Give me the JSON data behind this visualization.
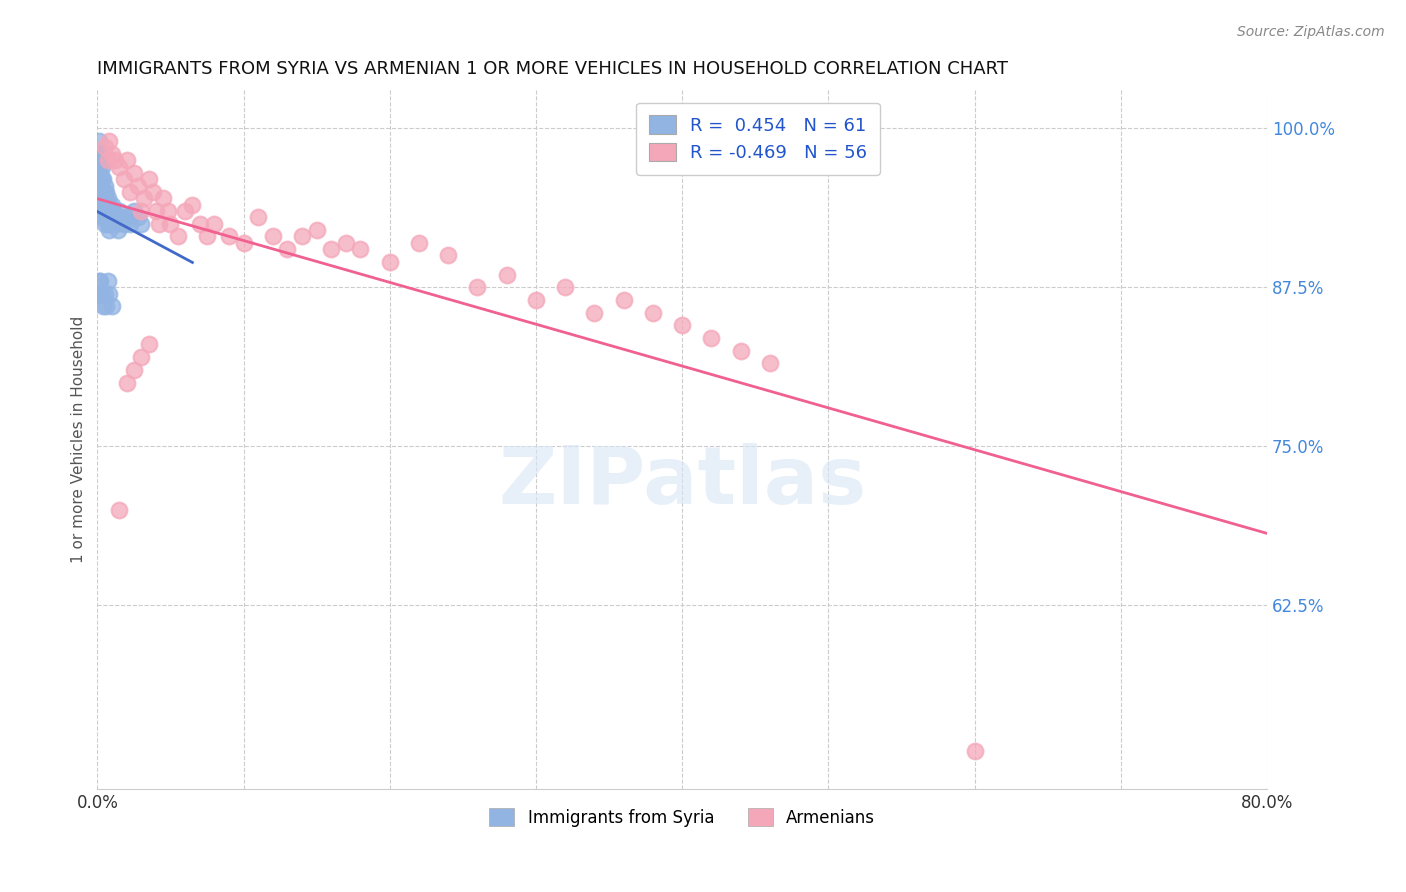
{
  "title": "IMMIGRANTS FROM SYRIA VS ARMENIAN 1 OR MORE VEHICLES IN HOUSEHOLD CORRELATION CHART",
  "source": "Source: ZipAtlas.com",
  "ylabel": "1 or more Vehicles in Household",
  "ytick_labels": [
    "100.0%",
    "87.5%",
    "75.0%",
    "62.5%"
  ],
  "ytick_values": [
    1.0,
    0.875,
    0.75,
    0.625
  ],
  "xlim": [
    0.0,
    0.8
  ],
  "ylim": [
    0.48,
    1.03
  ],
  "syria_color": "#92b4e3",
  "armenia_color": "#f4a7b9",
  "syria_line_color": "#4169c8",
  "armenia_line_color": "#f06090",
  "syria_R": 0.454,
  "syria_N": 61,
  "armenia_R": -0.469,
  "armenia_N": 56,
  "legend_label_syria": "Immigrants from Syria",
  "legend_label_armenia": "Armenians",
  "background_color": "#ffffff",
  "syria_x": [
    0.0005,
    0.0008,
    0.001,
    0.001,
    0.001,
    0.001,
    0.001,
    0.0015,
    0.002,
    0.002,
    0.002,
    0.002,
    0.003,
    0.003,
    0.003,
    0.003,
    0.003,
    0.004,
    0.004,
    0.004,
    0.004,
    0.005,
    0.005,
    0.005,
    0.005,
    0.006,
    0.006,
    0.006,
    0.007,
    0.007,
    0.007,
    0.008,
    0.008,
    0.008,
    0.009,
    0.009,
    0.01,
    0.01,
    0.011,
    0.012,
    0.013,
    0.014,
    0.015,
    0.016,
    0.018,
    0.02,
    0.022,
    0.025,
    0.028,
    0.03,
    0.001,
    0.001,
    0.002,
    0.002,
    0.003,
    0.004,
    0.005,
    0.006,
    0.007,
    0.008,
    0.01
  ],
  "syria_y": [
    0.98,
    0.97,
    0.99,
    0.975,
    0.96,
    0.95,
    0.945,
    0.98,
    0.975,
    0.965,
    0.955,
    0.94,
    0.97,
    0.96,
    0.95,
    0.94,
    0.93,
    0.96,
    0.95,
    0.94,
    0.93,
    0.955,
    0.945,
    0.935,
    0.925,
    0.95,
    0.94,
    0.93,
    0.945,
    0.935,
    0.925,
    0.94,
    0.93,
    0.92,
    0.935,
    0.925,
    0.94,
    0.93,
    0.935,
    0.93,
    0.925,
    0.92,
    0.935,
    0.93,
    0.925,
    0.93,
    0.925,
    0.935,
    0.93,
    0.925,
    0.88,
    0.87,
    0.88,
    0.87,
    0.87,
    0.86,
    0.87,
    0.86,
    0.88,
    0.87,
    0.86
  ],
  "armenia_x": [
    0.005,
    0.007,
    0.008,
    0.01,
    0.012,
    0.015,
    0.018,
    0.02,
    0.022,
    0.025,
    0.028,
    0.03,
    0.032,
    0.035,
    0.038,
    0.04,
    0.042,
    0.045,
    0.048,
    0.05,
    0.055,
    0.06,
    0.065,
    0.07,
    0.075,
    0.08,
    0.09,
    0.1,
    0.11,
    0.12,
    0.13,
    0.14,
    0.15,
    0.16,
    0.17,
    0.18,
    0.2,
    0.22,
    0.24,
    0.26,
    0.28,
    0.3,
    0.32,
    0.34,
    0.36,
    0.38,
    0.4,
    0.42,
    0.44,
    0.46,
    0.6,
    0.015,
    0.02,
    0.025,
    0.03,
    0.035
  ],
  "armenia_y": [
    0.985,
    0.975,
    0.99,
    0.98,
    0.975,
    0.97,
    0.96,
    0.975,
    0.95,
    0.965,
    0.955,
    0.935,
    0.945,
    0.96,
    0.95,
    0.935,
    0.925,
    0.945,
    0.935,
    0.925,
    0.915,
    0.935,
    0.94,
    0.925,
    0.915,
    0.925,
    0.915,
    0.91,
    0.93,
    0.915,
    0.905,
    0.915,
    0.92,
    0.905,
    0.91,
    0.905,
    0.895,
    0.91,
    0.9,
    0.875,
    0.885,
    0.865,
    0.875,
    0.855,
    0.865,
    0.855,
    0.845,
    0.835,
    0.825,
    0.815,
    0.51,
    0.7,
    0.8,
    0.81,
    0.82,
    0.83
  ]
}
